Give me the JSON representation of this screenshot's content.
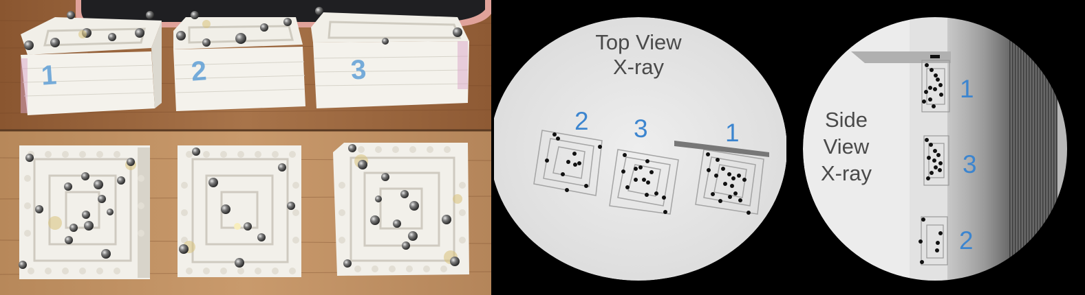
{
  "photo": {
    "box_labels": [
      "1",
      "2",
      "3"
    ]
  },
  "xray_top": {
    "title": "Top View\nX-ray",
    "numbers": [
      "2",
      "3",
      "1"
    ]
  },
  "xray_side": {
    "title": "Side\nView\nX-ray",
    "numbers": [
      "1",
      "3",
      "2"
    ]
  },
  "colors": {
    "label_blue": "#3c85cf",
    "xray_bg": "#e9e9e9",
    "wood": "#9a6a40"
  }
}
